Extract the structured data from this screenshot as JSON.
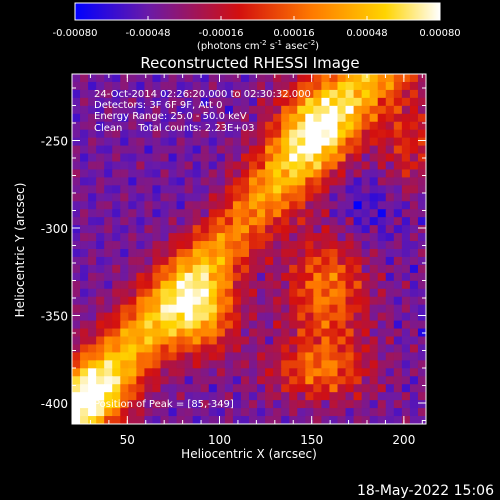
{
  "chart_data": {
    "type": "heatmap",
    "title": "Reconstructed RHESSI Image",
    "xlabel": "Heliocentric X (arcsec)",
    "ylabel": "Heliocentric Y (arcsec)",
    "xlim": [
      20,
      212
    ],
    "ylim": [
      -412,
      -212
    ],
    "xticks": [
      50,
      100,
      150,
      200
    ],
    "yticks": [
      -250,
      -300,
      -350,
      -400
    ],
    "colorbar": {
      "range": [
        -0.0008,
        0.0008
      ],
      "ticks": [
        "-0.00080",
        "-0.00048",
        "-0.00016",
        "0.00016",
        "0.00048",
        "0.00080"
      ],
      "label_main": "(photons cm",
      "label_sup1": "-2",
      "label_mid": " s",
      "label_sup2": "-1",
      "label_mid2": " asec",
      "label_sup3": "-2",
      "label_end": ")",
      "colors": [
        "#0000ff",
        "#6a1aa8",
        "#d3100f",
        "#ff7a00",
        "#ffd400",
        "#ffffff"
      ]
    },
    "annotations": [
      "24-Oct-2014 02:26:20.000 to 02:30:32.000",
      "Detectors: 3F 6F 9F, Att 0",
      "Energy Range: 25.0 - 50.0 keV",
      "Clean     Total counts: 2.23E+03"
    ],
    "peak_text": "Position of Peak = [85,-349]",
    "peak": [
      85,
      -349
    ],
    "grid": false
  },
  "footer": {
    "timestamp": "18-May-2022 15:06"
  }
}
